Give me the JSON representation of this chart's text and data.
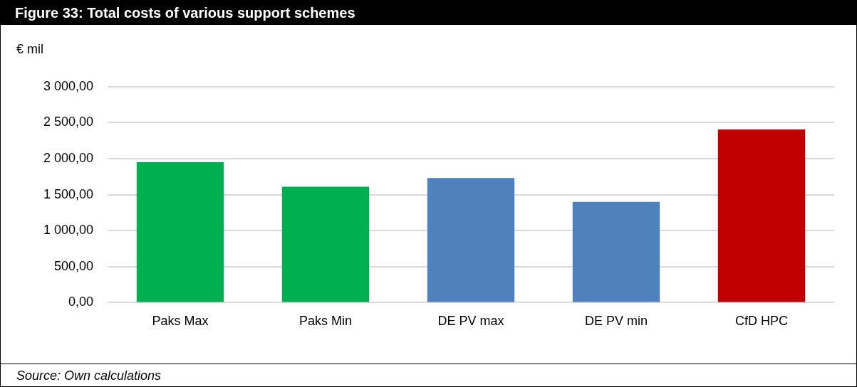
{
  "chart_data": {
    "type": "bar",
    "title": "Figure 33: Total costs of various support schemes",
    "ylabel": "€ mil",
    "categories": [
      "Paks Max",
      "Paks Min",
      "DE PV max",
      "DE PV min",
      "CfD HPC"
    ],
    "values": [
      1950,
      1610,
      1730,
      1400,
      2405
    ],
    "colors": [
      "#00b050",
      "#00b050",
      "#4f81bd",
      "#4f81bd",
      "#c00000"
    ],
    "ylim": [
      0,
      3000
    ],
    "yticks": [
      {
        "value": 0,
        "label": "0,00"
      },
      {
        "value": 500,
        "label": "500,00"
      },
      {
        "value": 1000,
        "label": "1 000,00"
      },
      {
        "value": 1500,
        "label": "1 500,00"
      },
      {
        "value": 2000,
        "label": "2 000,00"
      },
      {
        "value": 2500,
        "label": "2 500,00"
      },
      {
        "value": 3000,
        "label": "3 000,00"
      }
    ],
    "grid": "y",
    "annotations": [
      "Source: Own calculations"
    ]
  }
}
